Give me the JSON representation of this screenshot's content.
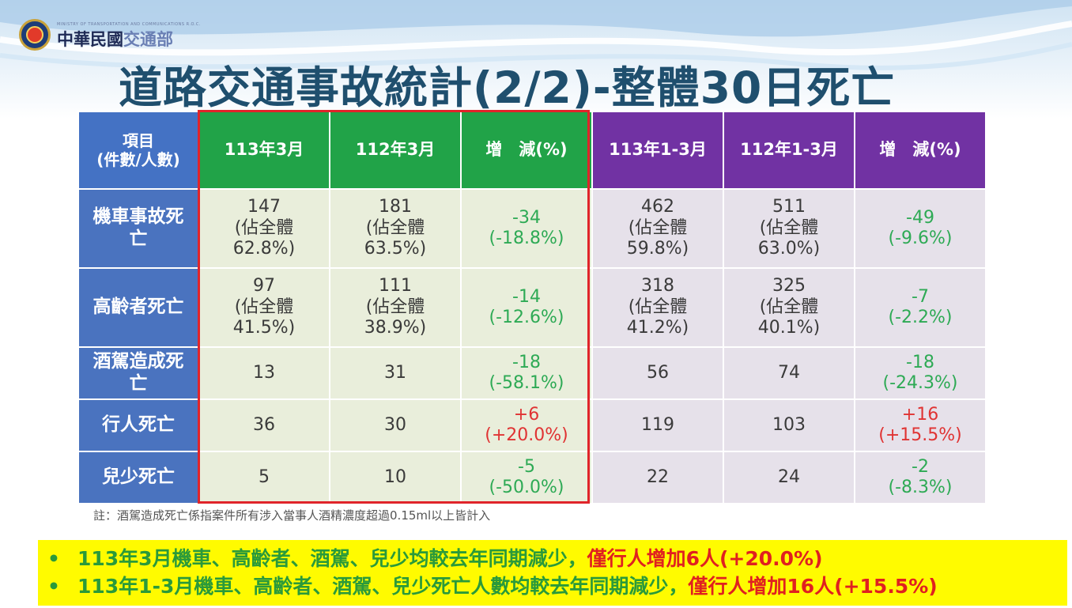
{
  "header": {
    "org_en": "MINISTRY OF TRANSPORTATION AND COMMUNICATIONS R.O.C.",
    "org_cn_a": "中華民國",
    "org_cn_b": "交通部",
    "title": "道路交通事故統計(2/2)-整體30日死亡"
  },
  "colors": {
    "item_header": "#4472c4",
    "green_header": "#21a348",
    "purple_header": "#7132a3",
    "decrease": "#2eaa55",
    "increase": "#e03333",
    "highlight_box": "#e0242a",
    "summary_bg": "#fffb00"
  },
  "table": {
    "item_header_line1": "項目",
    "item_header_line2": "(件數/人數)",
    "columns": [
      "113年3月",
      "112年3月",
      "增　減(%)",
      "113年1-3月",
      "112年1-3月",
      "增　減(%)"
    ],
    "rows": [
      {
        "label": "機車事故死亡",
        "m113": {
          "num": "147",
          "share_prefix": "(佔全體",
          "share": "62.8%)"
        },
        "m112": {
          "num": "181",
          "share_prefix": "(佔全體",
          "share": "63.5%)"
        },
        "m_diff": {
          "num": "-34",
          "pct": "(-18.8%)",
          "trend": "down"
        },
        "y113": {
          "num": "462",
          "share_prefix": "(佔全體",
          "share": "59.8%)"
        },
        "y112": {
          "num": "511",
          "share_prefix": "(佔全體",
          "share": "63.0%)"
        },
        "y_diff": {
          "num": "-49",
          "pct": "(-9.6%)",
          "trend": "down"
        }
      },
      {
        "label": "高齡者死亡",
        "m113": {
          "num": "97",
          "share_prefix": "(佔全體",
          "share": "41.5%)"
        },
        "m112": {
          "num": "111",
          "share_prefix": "(佔全體",
          "share": "38.9%)"
        },
        "m_diff": {
          "num": "-14",
          "pct": "(-12.6%)",
          "trend": "down"
        },
        "y113": {
          "num": "318",
          "share_prefix": "(佔全體",
          "share": "41.2%)"
        },
        "y112": {
          "num": "325",
          "share_prefix": "(佔全體",
          "share": "40.1%)"
        },
        "y_diff": {
          "num": "-7",
          "pct": "(-2.2%)",
          "trend": "down"
        }
      },
      {
        "label": "酒駕造成死亡",
        "m113": "13",
        "m112": "31",
        "m_diff": {
          "num": "-18",
          "pct": "(-58.1%)",
          "trend": "down"
        },
        "y113": "56",
        "y112": "74",
        "y_diff": {
          "num": "-18",
          "pct": "(-24.3%)",
          "trend": "down"
        }
      },
      {
        "label": "行人死亡",
        "m113": "36",
        "m112": "30",
        "m_diff": {
          "num": "+6",
          "pct": "(+20.0%)",
          "trend": "up"
        },
        "y113": "119",
        "y112": "103",
        "y_diff": {
          "num": "+16",
          "pct": "(+15.5%)",
          "trend": "up"
        }
      },
      {
        "label": "兒少死亡",
        "m113": "5",
        "m112": "10",
        "m_diff": {
          "num": "-5",
          "pct": "(-50.0%)",
          "trend": "down"
        },
        "y113": "22",
        "y112": "24",
        "y_diff": {
          "num": "-2",
          "pct": "(-8.3%)",
          "trend": "down"
        }
      }
    ]
  },
  "note": "註：酒駕造成死亡係指案件所有涉入當事人酒精濃度超過0.15ml以上皆計入",
  "summary": [
    {
      "bullet": "•",
      "text": "113年3月機車、高齡者、酒駕、兒少均較去年同期減少，",
      "highlight": "僅行人增加6人(+20.0%)"
    },
    {
      "bullet": "•",
      "text": "113年1-3月機車、高齡者、酒駕、兒少死亡人數均較去年同期減少，",
      "highlight": "僅行人增加16人(+15.5%)"
    }
  ]
}
